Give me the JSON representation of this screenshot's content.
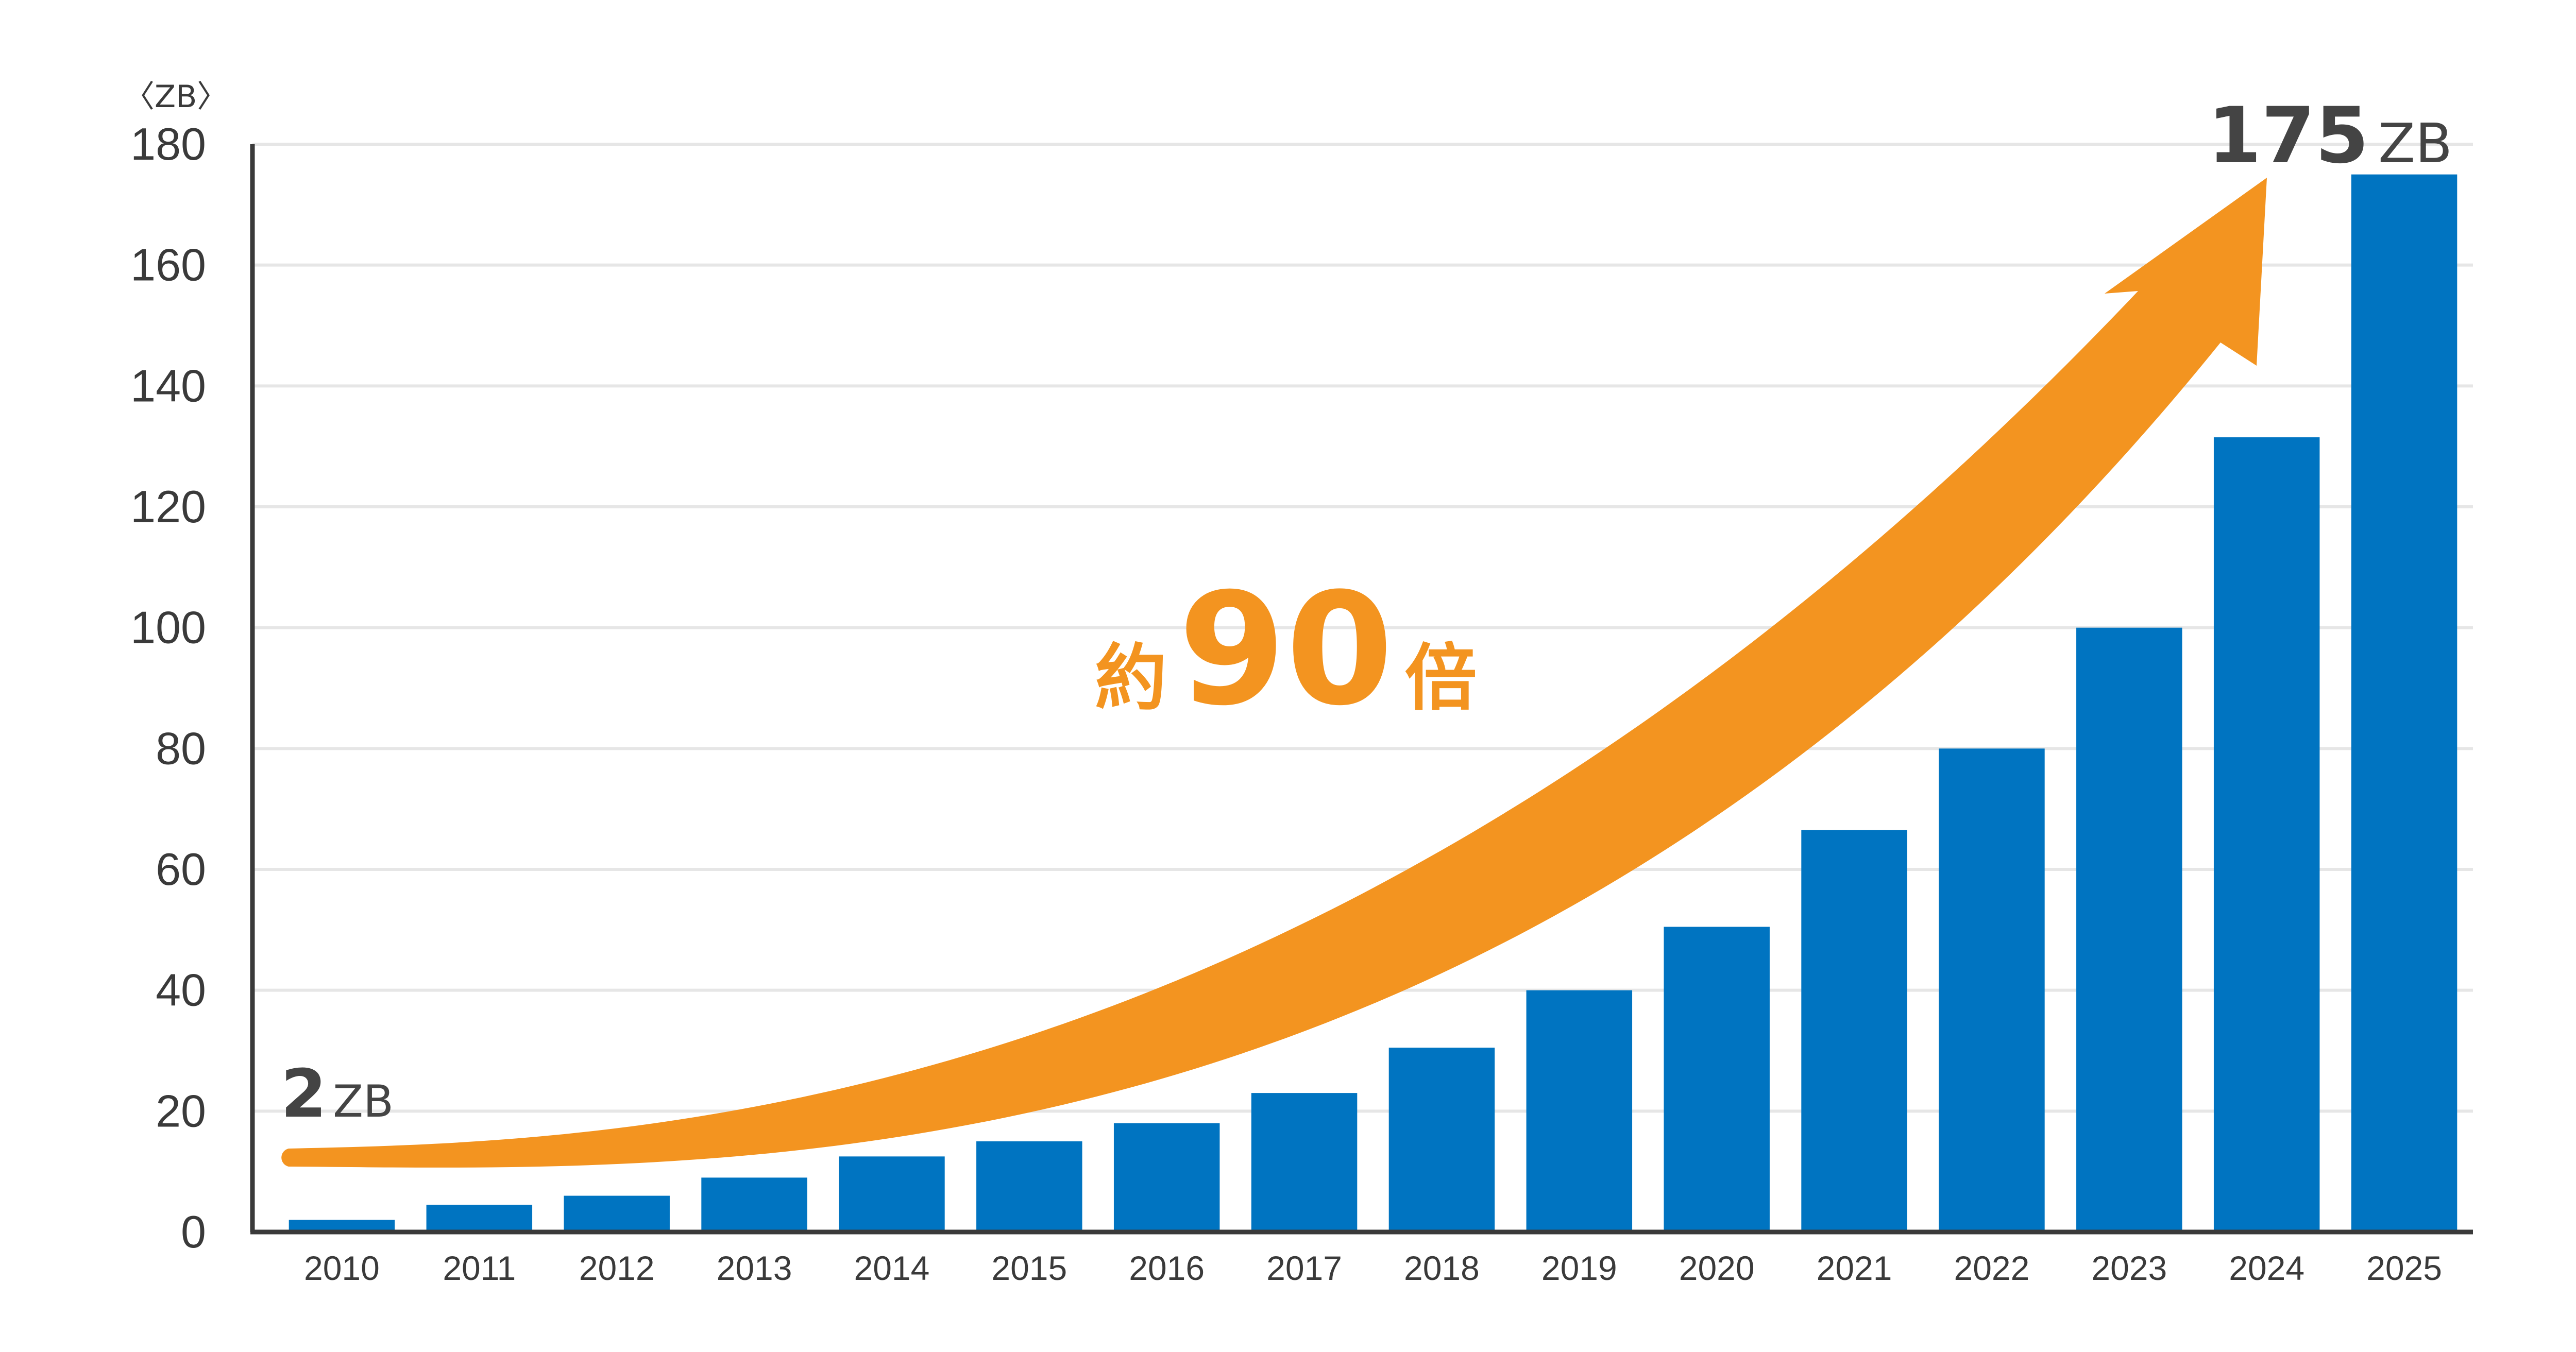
{
  "colors": {
    "bar": "#0074c1",
    "arrow": "#f39420",
    "grid": "#e6e6e6",
    "axis": "#3a3a3a"
  },
  "chart_data": {
    "type": "bar",
    "categories": [
      "2010",
      "2011",
      "2012",
      "2013",
      "2014",
      "2015",
      "2016",
      "2017",
      "2018",
      "2019",
      "2020",
      "2021",
      "2022",
      "2023",
      "2024",
      "2025"
    ],
    "values": [
      2,
      4.5,
      6,
      9,
      12.5,
      15,
      18,
      23,
      30.5,
      40,
      50.5,
      66.5,
      80,
      100,
      131.5,
      175
    ],
    "ylabel": "〈ZB〉",
    "ylim": [
      0,
      180
    ],
    "yticks": [
      "0",
      "20",
      "40",
      "60",
      "80",
      "100",
      "120",
      "140",
      "160",
      "180"
    ],
    "grid": true,
    "annotations": {
      "start_value": "2",
      "start_unit": "ZB",
      "end_value": "175",
      "end_unit": "ZB",
      "growth_prefix": "約",
      "growth_number": "90",
      "growth_suffix": "倍"
    }
  }
}
